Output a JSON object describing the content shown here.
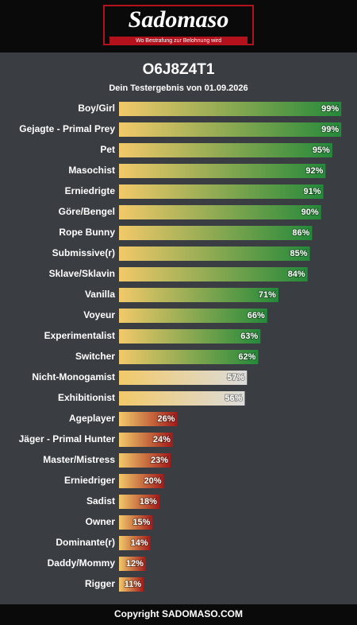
{
  "header": {
    "logo": "Sadomaso",
    "tagline": "Wo Bestrafung zur Belohnung wird"
  },
  "chart_data": {
    "type": "hbar",
    "title": "O6J8Z4T1",
    "subtitle": "Dein Testergebnis von 01.09.2026",
    "categories": [
      "Boy/Girl",
      "Gejagte - Primal Prey",
      "Pet",
      "Masochist",
      "Erniedrigte",
      "Göre/Bengel",
      "Rope Bunny",
      "Submissive(r)",
      "Sklave/Sklavin",
      "Vanilla",
      "Voyeur",
      "Experimentalist",
      "Switcher",
      "Nicht-Monogamist",
      "Exhibitionist",
      "Ageplayer",
      "Jäger - Primal Hunter",
      "Master/Mistress",
      "Erniedriger",
      "Sadist",
      "Owner",
      "Dominante(r)",
      "Daddy/Mommy",
      "Rigger"
    ],
    "values": [
      99,
      99,
      95,
      92,
      91,
      90,
      86,
      85,
      84,
      71,
      66,
      63,
      62,
      57,
      56,
      26,
      24,
      23,
      20,
      18,
      15,
      14,
      12,
      11
    ],
    "value_labels": [
      "99%",
      "99%",
      "95%",
      "92%",
      "91%",
      "90%",
      "86%",
      "85%",
      "84%",
      "71%",
      "66%",
      "63%",
      "62%",
      "57%",
      "56%",
      "26%",
      "24%",
      "23%",
      "20%",
      "18%",
      "15%",
      "14%",
      "12%",
      "11%"
    ],
    "gradient_start": "#f2c96a",
    "colors": [
      "#24893a",
      "#24893a",
      "#24893a",
      "#24893a",
      "#24893a",
      "#24893a",
      "#24893a",
      "#24893a",
      "#24893a",
      "#24893a",
      "#24893a",
      "#24893a",
      "#24893a",
      "#dcdcdc",
      "#dcdcdc",
      "#a11a1a",
      "#a11a1a",
      "#a11a1a",
      "#a11a1a",
      "#a11a1a",
      "#a11a1a",
      "#a11a1a",
      "#a11a1a",
      "#a11a1a"
    ],
    "xlim": [
      0,
      100
    ]
  },
  "footer": {
    "copyright": "Copyright SADOMASO.COM"
  }
}
